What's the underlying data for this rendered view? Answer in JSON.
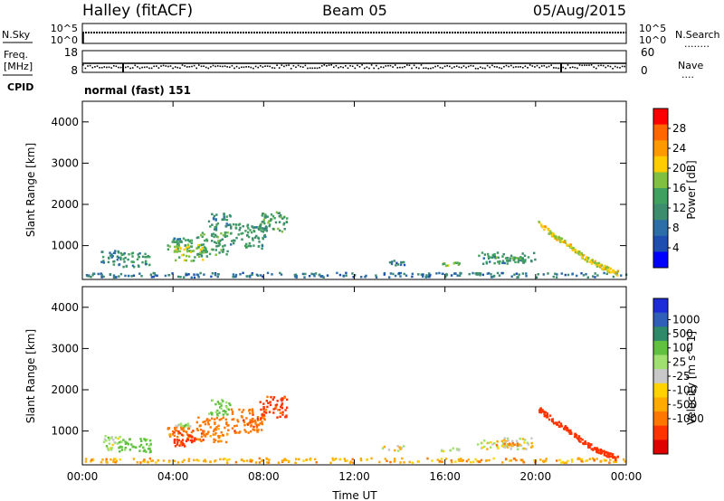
{
  "header": {
    "station": "Halley (fitACF)",
    "beam": "Beam 05",
    "date": "05/Aug/2015"
  },
  "params": {
    "nsky_label": "N.Sky",
    "nsearch_label": "N.Search",
    "nsearch_key": "........",
    "freq_label_1": "Freq.",
    "freq_label_2": "[MHz]",
    "nave_label": "Nave",
    "nave_key": "....",
    "cpid_label": "CPID",
    "cpid_value": "normal (fast) 151",
    "noise_ticks_left": [
      "10^5",
      "10^0"
    ],
    "noise_ticks_right": [
      "10^5",
      "10^0"
    ],
    "freq_ticks": [
      "18",
      "8"
    ],
    "nave_ticks": [
      "60",
      "0"
    ]
  },
  "chart_data": [
    {
      "type": "heatmap",
      "name": "power",
      "ylabel": "Slant Range [km]",
      "ylim": [
        180,
        4500
      ],
      "yticks": [
        "4000",
        "3000",
        "2000",
        "1000"
      ],
      "ytick_values": [
        4000,
        3000,
        2000,
        1000
      ],
      "colorbar_label": "Power [dB]",
      "colorbar_ticks": [
        "28",
        "24",
        "20",
        "16",
        "12",
        "8",
        "4"
      ],
      "colorbar_colors": [
        "#ff0000",
        "#ff6600",
        "#ff9900",
        "#ffcc00",
        "#80c040",
        "#40a060",
        "#3c8c6e",
        "#2c6fa8",
        "#1e4fb0",
        "#0000ff"
      ],
      "clusters": [
        {
          "t0": 0.1,
          "t1": 24.0,
          "r0": 200,
          "r1": 310,
          "level": 8
        },
        {
          "t0": 0.8,
          "t1": 1.7,
          "r0": 500,
          "r1": 850,
          "level": 10
        },
        {
          "t0": 1.5,
          "t1": 3.0,
          "r0": 450,
          "r1": 800,
          "level": 12
        },
        {
          "t0": 3.7,
          "t1": 4.8,
          "r0": 800,
          "r1": 1150,
          "level": 14
        },
        {
          "t0": 4.0,
          "t1": 5.3,
          "r0": 600,
          "r1": 1000,
          "level": 18
        },
        {
          "t0": 5.0,
          "t1": 6.4,
          "r0": 700,
          "r1": 1300,
          "level": 14
        },
        {
          "t0": 5.5,
          "t1": 6.5,
          "r0": 1350,
          "r1": 1750,
          "level": 10
        },
        {
          "t0": 6.5,
          "t1": 8.1,
          "r0": 900,
          "r1": 1500,
          "level": 12
        },
        {
          "t0": 7.8,
          "t1": 9.0,
          "r0": 1300,
          "r1": 1800,
          "level": 14
        },
        {
          "t0": 4.0,
          "t1": 4.8,
          "r0": 1050,
          "r1": 1150,
          "level": 12
        },
        {
          "t0": 13.2,
          "t1": 14.2,
          "r0": 490,
          "r1": 620,
          "level": 8
        },
        {
          "t0": 15.8,
          "t1": 16.6,
          "r0": 470,
          "r1": 560,
          "level": 18
        },
        {
          "t0": 17.4,
          "t1": 20.0,
          "r0": 530,
          "r1": 800,
          "level": 12
        },
        {
          "t0": 18.0,
          "t1": 19.4,
          "r0": 600,
          "r1": 700,
          "level": 14
        }
      ],
      "trace": {
        "t": [
          20.1,
          20.8,
          21.5,
          22.2,
          22.9,
          23.6
        ],
        "r": [
          1500,
          1200,
          950,
          650,
          450,
          300
        ],
        "level": 20
      }
    },
    {
      "type": "heatmap",
      "name": "velocity",
      "ylabel": "Slant Range [km]",
      "ylim": [
        180,
        4500
      ],
      "yticks": [
        "4000",
        "3000",
        "2000",
        "1000"
      ],
      "ytick_values": [
        4000,
        3000,
        2000,
        1000
      ],
      "xlabel": "Time UT",
      "xticks": [
        "00:00",
        "04:00",
        "08:00",
        "12:00",
        "16:00",
        "20:00",
        "00:00"
      ],
      "xtick_values": [
        0,
        4,
        8,
        12,
        16,
        20,
        24
      ],
      "colorbar_label": "Velocity [m s^-1]",
      "colorbar_ticks": [
        "1000",
        "500",
        "100",
        "25",
        "-25",
        "-100",
        "-500",
        "-1000"
      ],
      "colorbar_colors": [
        "#1c2cd8",
        "#2f5fb8",
        "#2f8a6a",
        "#60c040",
        "#a0e070",
        "#c8c8c8",
        "#ffd200",
        "#ffaa00",
        "#ff7700",
        "#ff3300",
        "#e00000"
      ],
      "clusters": [
        {
          "t0": 0.1,
          "t1": 24.0,
          "r0": 200,
          "r1": 310,
          "level": -60
        },
        {
          "t0": 0.8,
          "t1": 1.7,
          "r0": 500,
          "r1": 850,
          "level": 50
        },
        {
          "t0": 1.5,
          "t1": 3.0,
          "r0": 450,
          "r1": 800,
          "level": 150
        },
        {
          "t0": 3.7,
          "t1": 4.8,
          "r0": 800,
          "r1": 1150,
          "level": -150
        },
        {
          "t0": 4.0,
          "t1": 5.3,
          "r0": 600,
          "r1": 1000,
          "level": -300
        },
        {
          "t0": 5.0,
          "t1": 6.4,
          "r0": 700,
          "r1": 1300,
          "level": -150
        },
        {
          "t0": 5.5,
          "t1": 6.5,
          "r0": 1350,
          "r1": 1750,
          "level": 120
        },
        {
          "t0": 6.5,
          "t1": 8.1,
          "r0": 900,
          "r1": 1500,
          "level": -200
        },
        {
          "t0": 7.8,
          "t1": 9.0,
          "r0": 1300,
          "r1": 1800,
          "level": -300
        },
        {
          "t0": 4.0,
          "t1": 4.8,
          "r0": 1050,
          "r1": 1150,
          "level": 60
        },
        {
          "t0": 13.2,
          "t1": 14.2,
          "r0": 490,
          "r1": 620,
          "level": 10
        },
        {
          "t0": 15.8,
          "t1": 16.6,
          "r0": 470,
          "r1": 560,
          "level": 40
        },
        {
          "t0": 17.4,
          "t1": 20.0,
          "r0": 530,
          "r1": 800,
          "level": 10
        },
        {
          "t0": 18.0,
          "t1": 19.4,
          "r0": 600,
          "r1": 700,
          "level": -120
        }
      ],
      "trace": {
        "t": [
          20.1,
          20.8,
          21.5,
          22.2,
          22.9,
          23.6
        ],
        "r": [
          1500,
          1200,
          950,
          650,
          450,
          300
        ],
        "level": -400
      }
    }
  ]
}
